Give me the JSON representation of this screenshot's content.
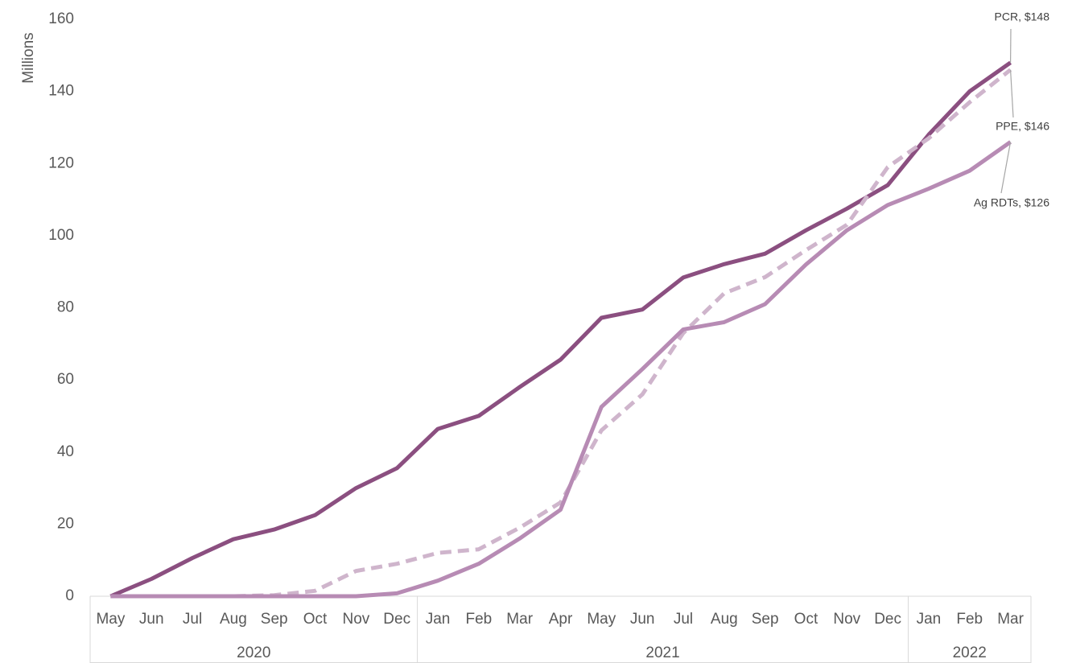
{
  "chart_data": {
    "type": "line",
    "y_label": "Millions",
    "groups": [
      {
        "name": "2020",
        "categories": [
          "May",
          "Jun",
          "Jul",
          "Aug",
          "Sep",
          "Oct",
          "Nov",
          "Dec"
        ]
      },
      {
        "name": "2021",
        "categories": [
          "Jan",
          "Feb",
          "Mar",
          "Apr",
          "May",
          "Jun",
          "Jul",
          "Aug",
          "Sep",
          "Oct",
          "Nov",
          "Dec"
        ]
      },
      {
        "name": "2022",
        "categories": [
          "Jan",
          "Feb",
          "Mar"
        ]
      }
    ],
    "series": [
      {
        "name": "PCR",
        "color": "#8b4f80",
        "dash": false,
        "values": [
          0,
          4.8,
          10.6,
          15.8,
          18.5,
          22.5,
          30,
          35.5,
          46.4,
          50,
          58,
          65.6,
          77.2,
          79.5,
          88.4,
          92.1,
          95,
          101.5,
          107.5,
          114,
          128,
          140,
          148
        ],
        "value_labels": [
          null,
          null,
          null,
          null,
          null,
          null,
          null,
          null,
          null,
          null,
          null,
          null,
          null,
          null,
          null,
          null,
          null,
          null,
          null,
          null,
          null,
          null,
          "PCR,  $148"
        ]
      },
      {
        "name": "PPE",
        "color": "#cfb5cc",
        "dash": true,
        "values": [
          0,
          0,
          0,
          0,
          0.3,
          1.5,
          7,
          9,
          12,
          13,
          19,
          26,
          46,
          56,
          73,
          84,
          88.5,
          96,
          103,
          119,
          127,
          137,
          146
        ],
        "value_labels": [
          null,
          null,
          null,
          null,
          null,
          null,
          null,
          null,
          null,
          null,
          null,
          null,
          null,
          null,
          null,
          null,
          null,
          null,
          null,
          null,
          null,
          null,
          "PPE,  $146"
        ]
      },
      {
        "name": "Ag RDTs",
        "color": "#b78bb4",
        "dash": false,
        "values": [
          0,
          0,
          0,
          0,
          0,
          0,
          0,
          0.8,
          4.3,
          9,
          16,
          24,
          52.5,
          63,
          74,
          76,
          81,
          92,
          101.5,
          108.5,
          113,
          118,
          126
        ],
        "value_labels": [
          null,
          null,
          null,
          null,
          null,
          null,
          null,
          null,
          null,
          null,
          null,
          null,
          null,
          null,
          null,
          null,
          null,
          null,
          null,
          null,
          null,
          null,
          "Ag RDTs,  $126"
        ]
      }
    ],
    "ylim": [
      0,
      160
    ],
    "yticks": [
      0,
      20,
      40,
      60,
      80,
      100,
      120,
      140,
      160
    ]
  }
}
